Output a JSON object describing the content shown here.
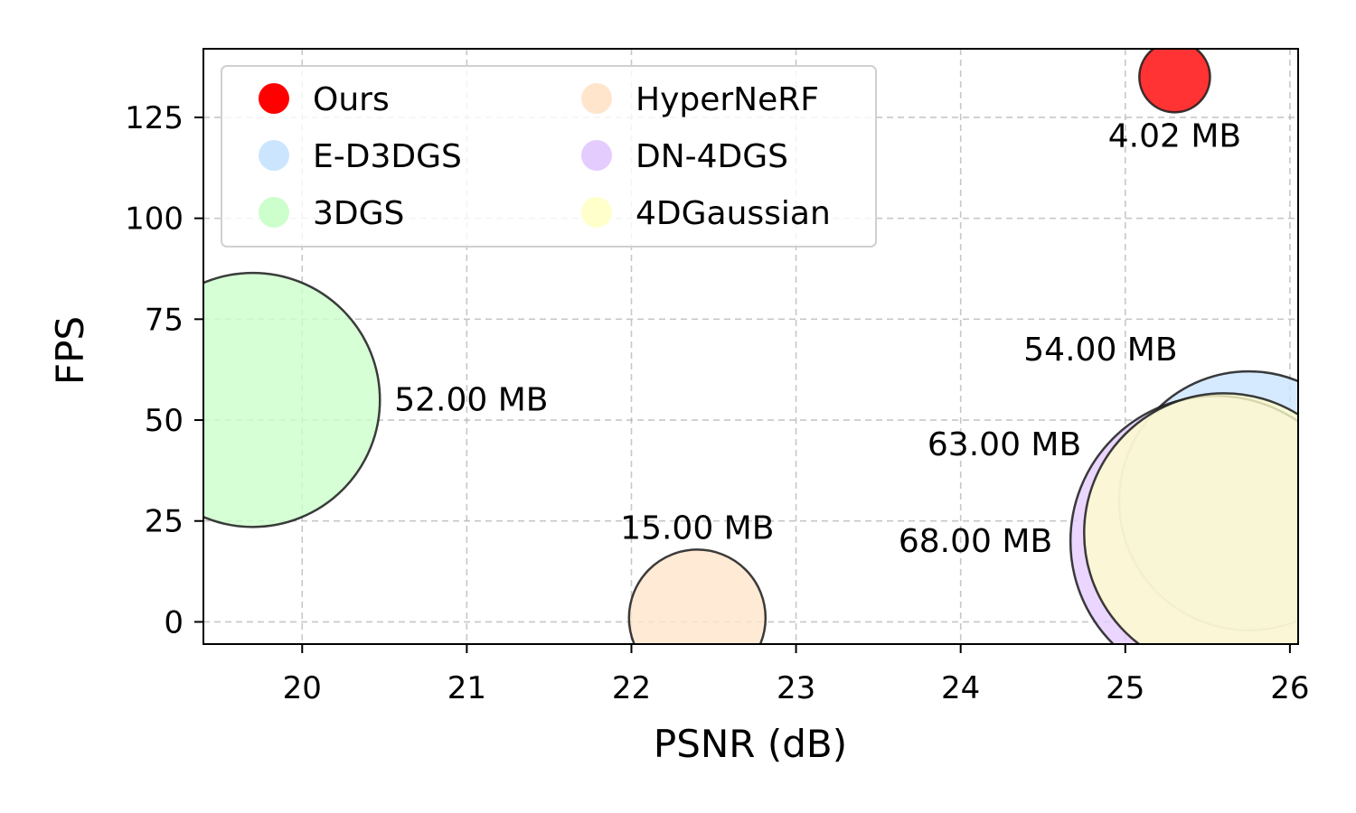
{
  "chart_data": {
    "type": "scatter",
    "title": "",
    "xlabel": "PSNR (dB)",
    "ylabel": "FPS",
    "xlim": [
      19.4,
      26.05
    ],
    "ylim": [
      -5.5,
      142
    ],
    "xticks": [
      20,
      21,
      22,
      23,
      24,
      25,
      26
    ],
    "yticks": [
      0,
      25,
      50,
      75,
      100,
      125
    ],
    "grid": true,
    "legend_position": "top-left",
    "size_unit": "MB",
    "series": [
      {
        "name": "Ours",
        "x": 25.3,
        "y": 135,
        "size": 4.02,
        "label": "4.02 MB",
        "color": "#ff0000",
        "alpha": 0.8
      },
      {
        "name": "E-D3DGS",
        "x": 25.75,
        "y": 30,
        "size": 54.0,
        "label": "54.00 MB",
        "color": "#cce5ff",
        "alpha": 0.8
      },
      {
        "name": "3DGS",
        "x": 19.7,
        "y": 55,
        "size": 52.0,
        "label": "52.00 MB",
        "color": "#ccffcc",
        "alpha": 0.8
      },
      {
        "name": "HyperNeRF",
        "x": 22.4,
        "y": 1,
        "size": 15.0,
        "label": "15.00 MB",
        "color": "#ffe5cc",
        "alpha": 0.8
      },
      {
        "name": "DN-4DGS",
        "x": 25.55,
        "y": 20,
        "size": 68.0,
        "label": "68.00 MB",
        "color": "#e5ccff",
        "alpha": 0.8
      },
      {
        "name": "4DGaussian",
        "x": 25.6,
        "y": 22,
        "size": 63.0,
        "label": "63.00 MB",
        "color": "#ffffcc",
        "alpha": 0.8
      }
    ]
  }
}
